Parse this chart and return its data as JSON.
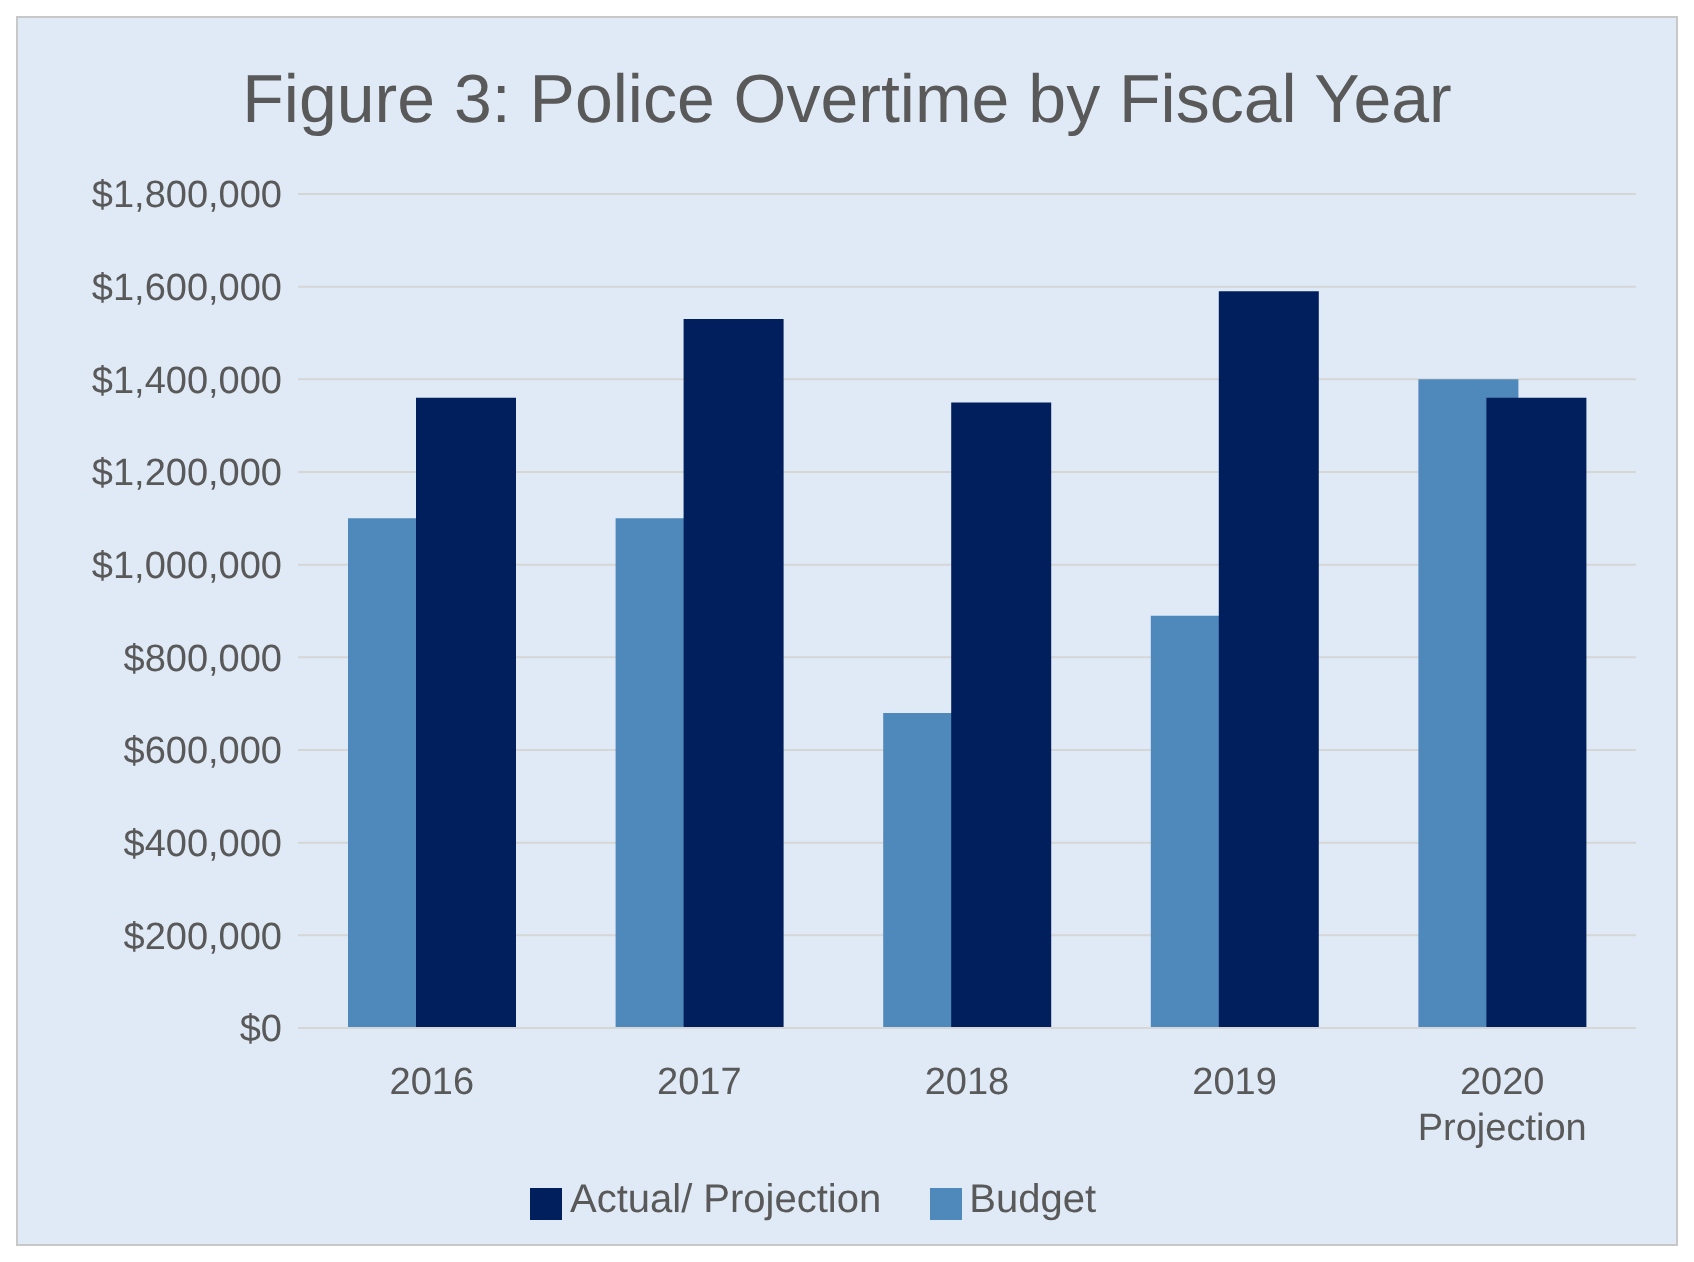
{
  "chart_data": {
    "type": "bar",
    "title": "Figure 3: Police Overtime by Fiscal Year",
    "categories": [
      "2016",
      "2017",
      "2018",
      "2019",
      "2020 Projection"
    ],
    "series": [
      {
        "name": "Budget",
        "color": "#4f88bb",
        "values": [
          1100000,
          1100000,
          680000,
          890000,
          1400000
        ]
      },
      {
        "name": "Actual/ Projection",
        "color": "#001f5c",
        "values": [
          1360000,
          1530000,
          1350000,
          1590000,
          1360000
        ]
      }
    ],
    "ylim": [
      0,
      1800000
    ],
    "yticks": [
      {
        "value": 0,
        "label": "$0"
      },
      {
        "value": 200000,
        "label": "$200,000"
      },
      {
        "value": 400000,
        "label": "$400,000"
      },
      {
        "value": 600000,
        "label": "$600,000"
      },
      {
        "value": 800000,
        "label": "$800,000"
      },
      {
        "value": 1000000,
        "label": "$1,000,000"
      },
      {
        "value": 1200000,
        "label": "$1,200,000"
      },
      {
        "value": 1400000,
        "label": "$1,400,000"
      },
      {
        "value": 1600000,
        "label": "$1,600,000"
      },
      {
        "value": 1800000,
        "label": "$1,800,000"
      }
    ],
    "grid": "y",
    "legend": "bottom"
  }
}
